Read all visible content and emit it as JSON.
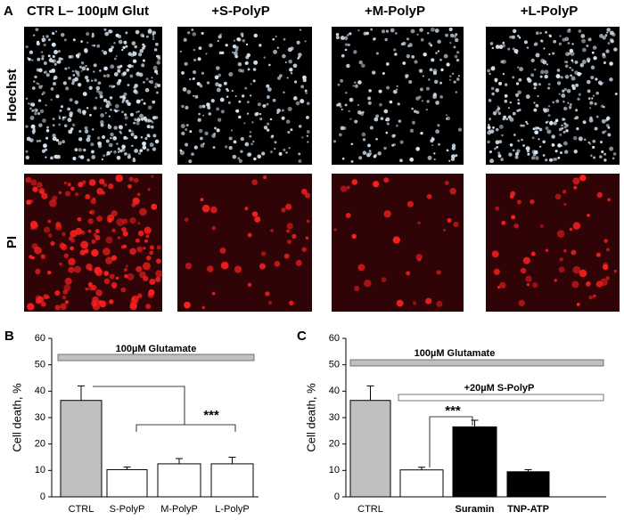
{
  "panel_a": {
    "label": "A",
    "columns": [
      "CTR L– 100µM Glut",
      "+S-PolyP",
      "+M-PolyP",
      "+L-PolyP"
    ],
    "rows": [
      "Hoechst",
      "PI"
    ]
  },
  "chart_data": [
    {
      "type": "bar",
      "panel": "B",
      "ylabel": "Cell death, %",
      "categories": [
        "CTRL",
        "S-PolyP",
        "M-PolyP",
        "L-PolyP"
      ],
      "values": [
        36.5,
        10.3,
        12.5,
        12.5
      ],
      "errors": [
        5.5,
        1,
        2,
        2.5
      ],
      "colors": [
        "#c0c0c0",
        "#ffffff",
        "#ffffff",
        "#ffffff"
      ],
      "ylim": [
        0,
        60
      ],
      "yticks": [
        0,
        10,
        20,
        30,
        40,
        50,
        60
      ],
      "annotations": [
        "100µM Glutamate",
        "***"
      ]
    },
    {
      "type": "bar",
      "panel": "C",
      "ylabel": "Cell death, %",
      "categories": [
        "CTRL",
        null,
        "Suramin",
        "TNP-ATP"
      ],
      "values": [
        36.5,
        10.2,
        26.5,
        9.5
      ],
      "errors": [
        5.5,
        1,
        2.5,
        0.8
      ],
      "colors": [
        "#c0c0c0",
        "#ffffff",
        "#000000",
        "#000000"
      ],
      "ylim": [
        0,
        60
      ],
      "yticks": [
        0,
        10,
        20,
        30,
        40,
        50,
        60
      ],
      "annotations": [
        "100µM Glutamate",
        "+20µM S-PolyP",
        "***"
      ]
    }
  ]
}
